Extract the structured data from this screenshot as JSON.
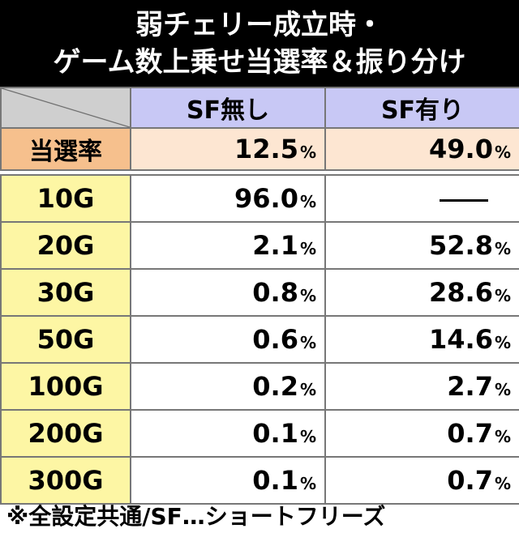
{
  "title": {
    "line1": "弱チェリー成立時・",
    "line2": "ゲーム数上乗せ当選率＆振り分け"
  },
  "columns": {
    "sf_none": "SF無し",
    "sf_yes": "SF有り"
  },
  "rate_row": {
    "label": "当選率",
    "sf_none": "12.5",
    "sf_yes": "49.0"
  },
  "percent_sign": "%",
  "rows": [
    {
      "label": "10G",
      "sf_none": "96.0",
      "sf_yes": "—"
    },
    {
      "label": "20G",
      "sf_none": "2.1",
      "sf_yes": "52.8"
    },
    {
      "label": "30G",
      "sf_none": "0.8",
      "sf_yes": "28.6"
    },
    {
      "label": "50G",
      "sf_none": "0.6",
      "sf_yes": "14.6"
    },
    {
      "label": "100G",
      "sf_none": "0.2",
      "sf_yes": "2.7"
    },
    {
      "label": "200G",
      "sf_none": "0.1",
      "sf_yes": "0.7"
    },
    {
      "label": "300G",
      "sf_none": "0.1",
      "sf_yes": "0.7"
    }
  ],
  "footnote": "※全設定共通/SF…ショートフリーズ"
}
